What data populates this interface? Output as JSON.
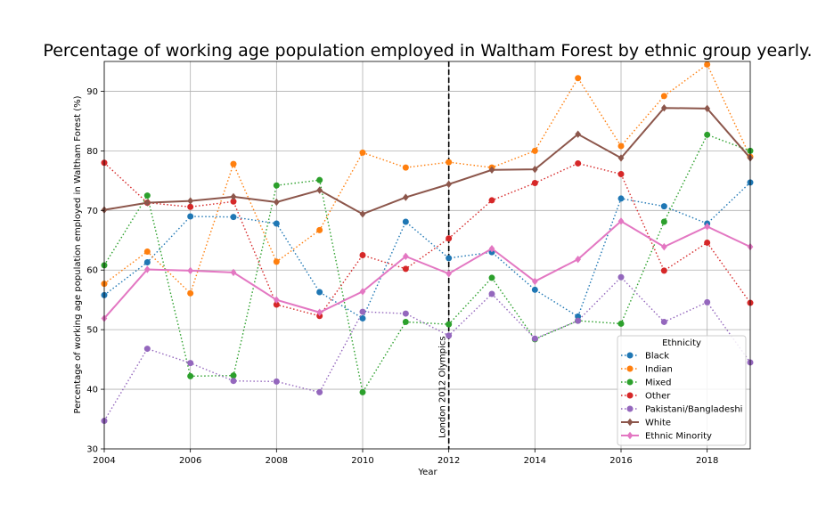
{
  "chart_data": {
    "type": "line",
    "title": "Percentage of working age population employed in Waltham Forest by ethnic group yearly.",
    "xlabel": "Year",
    "ylabel": "Percentage of working age population employed in Waltham Forest (%)",
    "xlim": [
      2004,
      2019
    ],
    "ylim": [
      30,
      95
    ],
    "x_ticks": [
      2004,
      2006,
      2008,
      2010,
      2012,
      2014,
      2016,
      2018
    ],
    "y_ticks": [
      30,
      40,
      50,
      60,
      70,
      80,
      90
    ],
    "grid": true,
    "x": [
      2004,
      2005,
      2006,
      2007,
      2008,
      2009,
      2010,
      2011,
      2012,
      2013,
      2014,
      2015,
      2016,
      2017,
      2018,
      2019
    ],
    "annotation": {
      "x": 2012,
      "label": "London 2012 Olympics",
      "color": "#000000"
    },
    "legend": {
      "title": "Ethnicity",
      "position": "lower right"
    },
    "series": [
      {
        "name": "Black",
        "color": "#1f77b4",
        "style": "dotted",
        "marker": "circle",
        "values": [
          55.8,
          61.3,
          69.0,
          68.9,
          67.8,
          56.3,
          51.9,
          68.1,
          62.0,
          63.0,
          56.7,
          52.2,
          72.0,
          70.7,
          67.8,
          74.7
        ]
      },
      {
        "name": "Indian",
        "color": "#ff7f0e",
        "style": "dotted",
        "marker": "circle",
        "values": [
          57.7,
          63.1,
          56.1,
          77.8,
          61.4,
          66.7,
          79.7,
          77.2,
          78.1,
          77.2,
          80.0,
          92.2,
          80.8,
          89.2,
          94.5,
          79.0
        ]
      },
      {
        "name": "Mixed",
        "color": "#2ca02c",
        "style": "dotted",
        "marker": "circle",
        "values": [
          60.8,
          72.5,
          42.2,
          42.3,
          74.2,
          75.1,
          39.5,
          51.3,
          50.9,
          58.7,
          48.4,
          51.5,
          51.0,
          68.1,
          82.7,
          80.0
        ]
      },
      {
        "name": "Other",
        "color": "#d62728",
        "style": "dotted",
        "marker": "circle",
        "values": [
          78.0,
          71.3,
          70.6,
          71.5,
          54.2,
          52.3,
          62.5,
          60.2,
          65.3,
          71.7,
          74.6,
          77.9,
          76.1,
          59.9,
          64.6,
          54.5
        ]
      },
      {
        "name": "Pakistani/Bangladeshi",
        "color": "#9467bd",
        "style": "dotted",
        "marker": "circle",
        "values": [
          34.7,
          46.8,
          44.4,
          41.4,
          41.3,
          39.5,
          53.0,
          52.7,
          49.0,
          56.0,
          48.5,
          51.5,
          58.8,
          51.3,
          54.6,
          44.5
        ]
      },
      {
        "name": "White",
        "color": "#8c564b",
        "style": "solid",
        "marker": "diamond",
        "values": [
          70.1,
          71.3,
          71.6,
          72.3,
          71.4,
          73.4,
          69.4,
          72.2,
          74.4,
          76.8,
          76.9,
          82.8,
          78.8,
          87.2,
          87.1,
          78.8
        ]
      },
      {
        "name": "Ethnic Minority",
        "color": "#e377c2",
        "style": "solid",
        "marker": "diamond",
        "values": [
          51.9,
          60.1,
          59.9,
          59.6,
          55.0,
          52.9,
          56.4,
          62.3,
          59.4,
          63.6,
          58.1,
          61.8,
          68.2,
          63.9,
          67.3,
          63.9
        ]
      }
    ]
  }
}
